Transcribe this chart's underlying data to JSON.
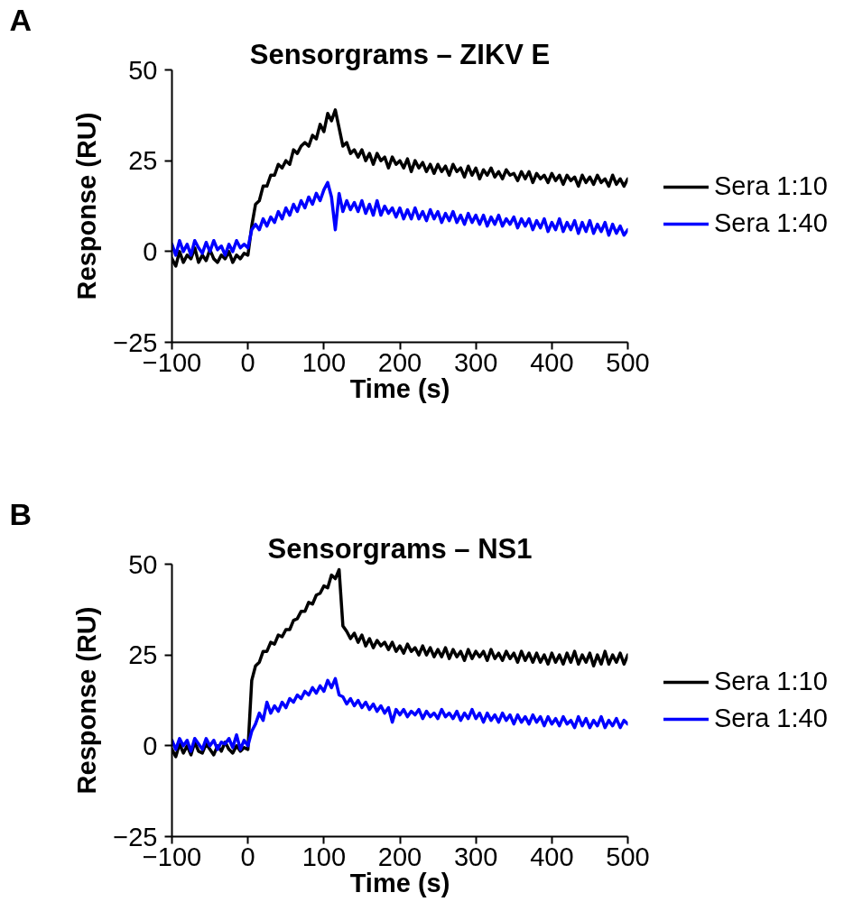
{
  "chart_data": [
    {
      "type": "line",
      "title": "Sensorgrams – ZIKV E",
      "xlabel": "Time (s)",
      "ylabel": "Response (RU)",
      "annotations": [
        "A"
      ],
      "legend": "right",
      "line_style": "solid",
      "xlim": [
        -100,
        500
      ],
      "ylim": [
        -25,
        50
      ],
      "xticks": [
        -100,
        0,
        100,
        200,
        300,
        400,
        500
      ],
      "yticks": [
        -25,
        0,
        25,
        50
      ],
      "x": [
        -100,
        -95,
        -90,
        -85,
        -80,
        -75,
        -70,
        -65,
        -60,
        -55,
        -50,
        -45,
        -40,
        -35,
        -30,
        -25,
        -20,
        -15,
        -10,
        -5,
        0,
        5,
        10,
        15,
        20,
        25,
        30,
        35,
        40,
        45,
        50,
        55,
        60,
        65,
        70,
        75,
        80,
        85,
        90,
        95,
        100,
        105,
        110,
        115,
        120,
        125,
        130,
        135,
        140,
        145,
        150,
        155,
        160,
        165,
        170,
        175,
        180,
        185,
        190,
        195,
        200,
        205,
        210,
        215,
        220,
        225,
        230,
        235,
        240,
        245,
        250,
        255,
        260,
        265,
        270,
        275,
        280,
        285,
        290,
        295,
        300,
        305,
        310,
        315,
        320,
        325,
        330,
        335,
        340,
        345,
        350,
        355,
        360,
        365,
        370,
        375,
        380,
        385,
        390,
        395,
        400,
        405,
        410,
        415,
        420,
        425,
        430,
        435,
        440,
        445,
        450,
        455,
        460,
        465,
        470,
        475,
        480,
        485,
        490,
        495,
        500
      ],
      "series": [
        {
          "name": "Sera 1:10",
          "color": "#000000",
          "values": [
            -2,
            -4,
            0,
            -3,
            -1,
            -2,
            1,
            -3,
            -1,
            -2.5,
            0.5,
            -2,
            -3,
            -1,
            -2,
            0,
            -3,
            -1,
            -2,
            -0.5,
            -1,
            7,
            13,
            14,
            18,
            18,
            21,
            21,
            24,
            23,
            25,
            24,
            28,
            27,
            29,
            30,
            29,
            32,
            31,
            35,
            33,
            38,
            36,
            39,
            34,
            29,
            30,
            27,
            28,
            26,
            28,
            25,
            27,
            24,
            27,
            25,
            26,
            23,
            26,
            24,
            25,
            23,
            25.5,
            22,
            25,
            23,
            24.5,
            22,
            24,
            21.5,
            24,
            22,
            23.5,
            21,
            24,
            22,
            23,
            20.5,
            23.5,
            21,
            23,
            20,
            22.5,
            21,
            23,
            20.5,
            22,
            20,
            22.5,
            21,
            21.5,
            19.5,
            22,
            20,
            22,
            19,
            21.5,
            20,
            21,
            19,
            21.5,
            19.5,
            21,
            18.5,
            21,
            19.5,
            20.5,
            18,
            21,
            19,
            20.5,
            18.5,
            21,
            19,
            20,
            18,
            21,
            18.5,
            20,
            18,
            20
          ]
        },
        {
          "name": "Sera 1:40",
          "color": "#0000ff",
          "values": [
            2,
            -1,
            3,
            0,
            2,
            -1,
            3,
            1,
            -0.5,
            2.5,
            0,
            3,
            0.5,
            1.5,
            -1,
            2,
            0,
            3,
            1,
            2,
            1,
            6,
            7.5,
            6,
            9,
            7,
            9.5,
            8,
            11,
            9,
            12,
            10,
            13,
            11,
            14,
            12,
            15,
            13,
            16,
            14,
            17,
            19,
            15,
            6,
            16,
            11,
            14,
            11.5,
            13.5,
            11,
            14,
            10.5,
            13,
            10,
            14,
            10,
            12.5,
            10.5,
            12,
            9.5,
            12,
            9,
            11.5,
            9,
            12,
            9,
            11,
            8.5,
            11.5,
            9,
            11,
            8,
            10.5,
            8.5,
            11,
            8,
            10,
            7.5,
            10.5,
            8,
            10,
            7.5,
            10,
            7,
            9.5,
            7.5,
            10,
            7,
            9,
            7.5,
            9.5,
            6.5,
            9,
            7,
            9,
            6,
            8.5,
            6.5,
            9,
            5.5,
            8,
            6,
            9,
            5.5,
            8,
            6,
            8.5,
            5,
            8,
            5.5,
            8.5,
            5,
            7.5,
            5.5,
            8,
            4.5,
            7.5,
            5,
            7,
            4.5,
            6
          ]
        }
      ]
    },
    {
      "type": "line",
      "title": "Sensorgrams – NS1",
      "xlabel": "Time (s)",
      "ylabel": "Response (RU)",
      "annotations": [
        "B"
      ],
      "legend": "right",
      "line_style": "solid",
      "xlim": [
        -100,
        500
      ],
      "ylim": [
        -25,
        50
      ],
      "xticks": [
        -100,
        0,
        100,
        200,
        300,
        400,
        500
      ],
      "yticks": [
        -25,
        0,
        25,
        50
      ],
      "x": [
        -100,
        -95,
        -90,
        -85,
        -80,
        -75,
        -70,
        -65,
        -60,
        -55,
        -50,
        -45,
        -40,
        -35,
        -30,
        -25,
        -20,
        -15,
        -10,
        -5,
        0,
        5,
        10,
        15,
        20,
        25,
        30,
        35,
        40,
        45,
        50,
        55,
        60,
        65,
        70,
        75,
        80,
        85,
        90,
        95,
        100,
        105,
        110,
        115,
        120,
        125,
        130,
        135,
        140,
        145,
        150,
        155,
        160,
        165,
        170,
        175,
        180,
        185,
        190,
        195,
        200,
        205,
        210,
        215,
        220,
        225,
        230,
        235,
        240,
        245,
        250,
        255,
        260,
        265,
        270,
        275,
        280,
        285,
        290,
        295,
        300,
        305,
        310,
        315,
        320,
        325,
        330,
        335,
        340,
        345,
        350,
        355,
        360,
        365,
        370,
        375,
        380,
        385,
        390,
        395,
        400,
        405,
        410,
        415,
        420,
        425,
        430,
        435,
        440,
        445,
        450,
        455,
        460,
        465,
        470,
        475,
        480,
        485,
        490,
        495,
        500
      ],
      "series": [
        {
          "name": "Sera 1:10",
          "color": "#000000",
          "values": [
            -1,
            -3,
            0.5,
            -2,
            0,
            -2.5,
            1,
            -1.5,
            -2,
            0.5,
            -1,
            -2.5,
            0,
            -1.5,
            1,
            -1,
            -2,
            0,
            -1.5,
            -0.5,
            -1,
            18,
            22,
            23,
            26,
            26,
            28.5,
            28,
            30.5,
            30,
            32,
            32,
            34.5,
            35,
            37,
            37,
            39.5,
            39,
            41.5,
            42,
            44,
            43.5,
            47,
            46,
            48.5,
            33,
            31.5,
            29.5,
            31,
            28.5,
            30.5,
            27.5,
            29.5,
            27,
            29,
            27.5,
            28.5,
            26.5,
            28.5,
            26,
            27.5,
            25.5,
            28,
            26,
            27,
            25,
            27.5,
            25,
            27,
            24.5,
            26.5,
            24.5,
            27,
            24,
            26.5,
            24.5,
            26,
            23.5,
            26.5,
            24,
            26,
            24.5,
            26,
            23.5,
            26.5,
            24,
            25.5,
            23.5,
            26,
            24,
            25.5,
            23,
            26,
            23.5,
            25.5,
            23,
            25.5,
            23,
            25,
            22.5,
            25.5,
            23,
            25,
            22.5,
            25.5,
            23,
            26,
            22.5,
            25,
            23,
            25.5,
            22,
            25,
            22.5,
            26,
            22.5,
            25,
            23,
            25.5,
            22.5,
            25
          ]
        },
        {
          "name": "Sera 1:40",
          "color": "#0000ff",
          "values": [
            1.5,
            -1,
            2,
            0,
            1.5,
            -1.5,
            2,
            0.5,
            -1,
            2,
            0,
            1.5,
            -1,
            1,
            0.5,
            2,
            -0.5,
            3,
            -1,
            1.5,
            0,
            4,
            6,
            9,
            7,
            12,
            9,
            11,
            9.5,
            12,
            10.5,
            13,
            12,
            14,
            13,
            15,
            14,
            16,
            14.5,
            16.5,
            15,
            18,
            16,
            18.5,
            14,
            13.5,
            11.5,
            13,
            11,
            12.5,
            10.5,
            12,
            10,
            11.5,
            9.5,
            11,
            9,
            10.5,
            6.5,
            10,
            8.5,
            10,
            8,
            9.5,
            8.5,
            10,
            7.5,
            9.5,
            8,
            9,
            7.5,
            10,
            8,
            9,
            7.5,
            9.5,
            7,
            9,
            7.5,
            10,
            7.5,
            9,
            6.5,
            9,
            7,
            8.5,
            6.5,
            9,
            7,
            8.5,
            6,
            8.5,
            6.5,
            8,
            6,
            8.5,
            6.5,
            8,
            5.5,
            8,
            6,
            7.5,
            5.5,
            8,
            6,
            7,
            5,
            8,
            5.5,
            7.5,
            5,
            7,
            5.5,
            8,
            5,
            7,
            5.5,
            7.5,
            5,
            7,
            6
          ]
        }
      ]
    }
  ]
}
